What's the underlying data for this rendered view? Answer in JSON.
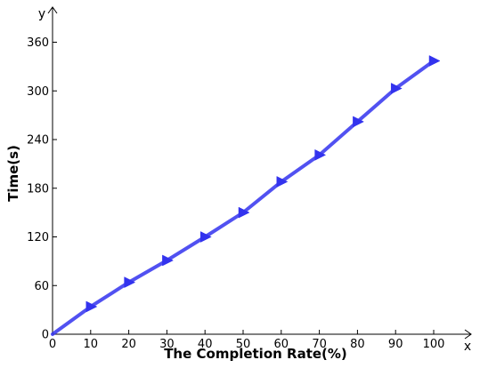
{
  "chart_data": {
    "type": "line",
    "title": "",
    "xlabel": "The Completion Rate(%)",
    "ylabel": "Time(s)",
    "x_axis_letter": "x",
    "y_axis_letter": "y",
    "xlim": [
      0,
      105
    ],
    "ylim": [
      0,
      385
    ],
    "x_ticks": [
      0,
      10,
      20,
      30,
      40,
      50,
      60,
      70,
      80,
      90,
      100
    ],
    "y_ticks": [
      0,
      60,
      120,
      180,
      240,
      300,
      360
    ],
    "grid": false,
    "legend": "none",
    "marker": "triangle-right",
    "series": [
      {
        "color": "#3333ee",
        "x": [
          0,
          10,
          20,
          30,
          40,
          50,
          60,
          70,
          80,
          90,
          100
        ],
        "y": [
          0,
          34,
          64,
          91,
          120,
          150,
          188,
          221,
          262,
          303,
          337
        ]
      }
    ]
  }
}
